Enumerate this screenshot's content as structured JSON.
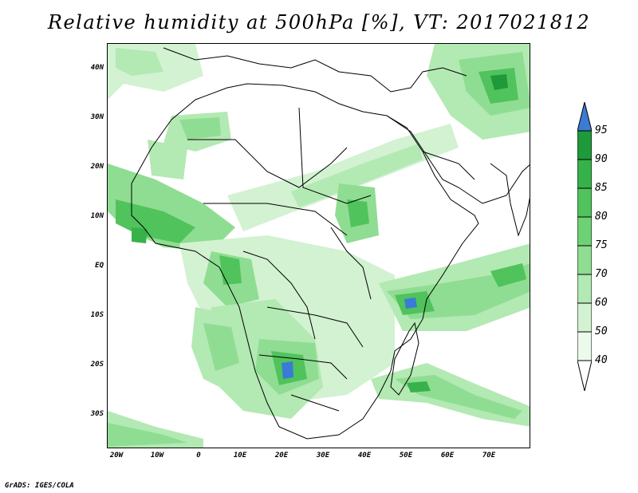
{
  "title": "Relative humidity at 500hPa [%], VT: 2017021812",
  "credit": "GrADS: IGES/COLA",
  "map": {
    "lat_labels": [
      "40N",
      "30N",
      "20N",
      "10N",
      "EQ",
      "10S",
      "20S",
      "30S"
    ],
    "lon_labels": [
      "20W",
      "10W",
      "0",
      "10E",
      "20E",
      "30E",
      "40E",
      "50E",
      "60E",
      "70E"
    ]
  },
  "colorbar": {
    "levels": [
      "95",
      "90",
      "85",
      "80",
      "75",
      "70",
      "60",
      "50",
      "40"
    ],
    "colors": {
      "above_95": "#3a7bd5",
      "90_95": "#1f9a3a",
      "85_90": "#37b24a",
      "80_85": "#50c35c",
      "75_80": "#6fd176",
      "70_75": "#8fdd92",
      "60_70": "#b3e9b3",
      "50_60": "#d2f2d1",
      "40_50": "#ecfaeb",
      "below_40": "#ffffff"
    }
  }
}
